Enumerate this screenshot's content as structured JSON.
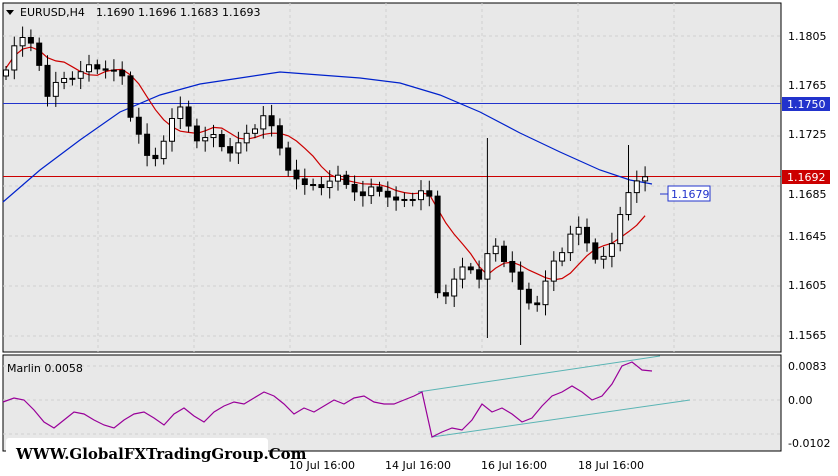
{
  "header": {
    "symbol": "EURUSD,H4",
    "ohlc": "1.1690 1.1696 1.1683 1.1693"
  },
  "indicator": {
    "label": "Marlin 0.0058",
    "ticks": [
      "0.0083",
      "0.00",
      "-0.0102"
    ]
  },
  "watermark": "WWW.GlobalFXTradingGroup.Com",
  "colors": {
    "background": "#ffffff",
    "plot_background": "#e8e8e8",
    "grid": "#c8c8c8",
    "ma_fast": "#cc0000",
    "ma_slow": "#0022cc",
    "level_line": "#2233cc",
    "price_line": "#cc0000",
    "marlin": "#990099",
    "channel": "#5ab4b4"
  },
  "chart_data": {
    "type": "candlestick",
    "price_ticks": [
      "1.1805",
      "1.1765",
      "1.1750",
      "1.1725",
      "1.1692",
      "1.1685",
      "1.1645",
      "1.1605",
      "1.1565"
    ],
    "level_label": "1.1750",
    "current_label": "1.1692",
    "callout_label": "1.1679",
    "x_labels": [
      "10 Jul 16:00",
      "14 Jul 16:00",
      "16 Jul 16:00",
      "18 Jul 16:00"
    ],
    "ylim": [
      1.1545,
      1.1835
    ]
  }
}
